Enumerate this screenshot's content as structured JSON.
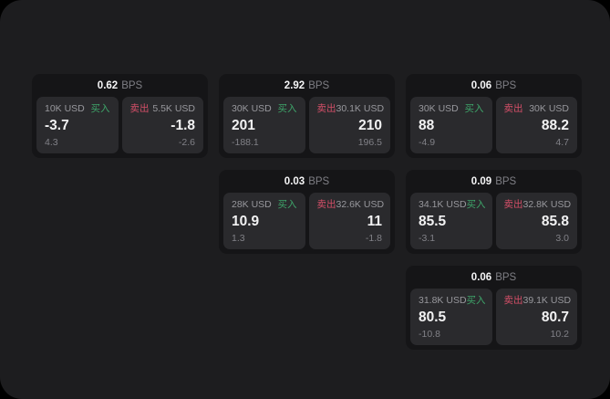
{
  "labels": {
    "bps": "BPS",
    "buy": "买入",
    "sell": "卖出"
  },
  "colors": {
    "page_bg": "#1d1d1f",
    "card_bg": "#151517",
    "pane_bg": "#2a2a2d",
    "buy_green": "#3ea56a",
    "sell_red": "#d44f68",
    "value_white": "#f2f2f3",
    "muted_gray": "#98989d"
  },
  "cards": [
    {
      "bps_value": "0.62",
      "buy": {
        "amount": "10K USD",
        "value": "-3.7",
        "sub": "4.3"
      },
      "sell": {
        "amount": "5.5K USD",
        "value": "-1.8",
        "sub": "-2.6"
      }
    },
    {
      "bps_value": "2.92",
      "buy": {
        "amount": "30K USD",
        "value": "201",
        "sub": "-188.1"
      },
      "sell": {
        "amount": "30.1K USD",
        "value": "210",
        "sub": "196.5"
      }
    },
    {
      "bps_value": "0.06",
      "buy": {
        "amount": "30K USD",
        "value": "88",
        "sub": "-4.9"
      },
      "sell": {
        "amount": "30K USD",
        "value": "88.2",
        "sub": "4.7"
      }
    },
    {
      "bps_value": "0.03",
      "buy": {
        "amount": "28K USD",
        "value": "10.9",
        "sub": "1.3"
      },
      "sell": {
        "amount": "32.6K USD",
        "value": "11",
        "sub": "-1.8"
      }
    },
    {
      "bps_value": "0.09",
      "buy": {
        "amount": "34.1K USD",
        "value": "85.5",
        "sub": "-3.1"
      },
      "sell": {
        "amount": "32.8K USD",
        "value": "85.8",
        "sub": "3.0"
      }
    },
    {
      "bps_value": "0.06",
      "buy": {
        "amount": "31.8K USD",
        "value": "80.5",
        "sub": "-10.8"
      },
      "sell": {
        "amount": "39.1K USD",
        "value": "80.7",
        "sub": "10.2"
      }
    }
  ]
}
